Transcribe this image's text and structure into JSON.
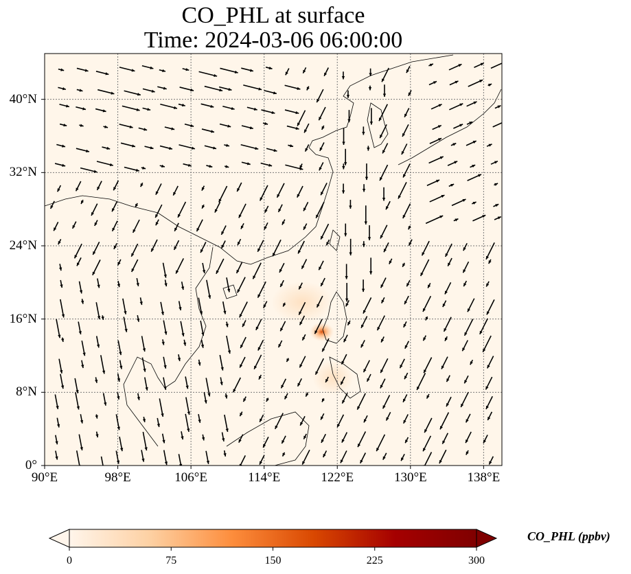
{
  "title": "CO_PHL at surface",
  "subtitle": "Time: 2024-03-06 06:00:00",
  "map": {
    "lon_range": [
      90,
      140
    ],
    "lat_range": [
      0,
      45
    ],
    "gridlines": true,
    "lat_ticks": [
      {
        "value": 40,
        "label": "40°N"
      },
      {
        "value": 32,
        "label": "32°N"
      },
      {
        "value": 24,
        "label": "24°N"
      },
      {
        "value": 16,
        "label": "16°N"
      },
      {
        "value": 8,
        "label": "8°N"
      },
      {
        "value": 0,
        "label": "0°"
      }
    ],
    "lon_ticks": [
      {
        "value": 90,
        "label": "90°E"
      },
      {
        "value": 98,
        "label": "98°E"
      },
      {
        "value": 106,
        "label": "106°E"
      },
      {
        "value": 114,
        "label": "114°E"
      },
      {
        "value": 122,
        "label": "122°E"
      },
      {
        "value": 130,
        "label": "130°E"
      },
      {
        "value": 138,
        "label": "138°E"
      }
    ],
    "background_color": "#fff6ea",
    "hotspot": {
      "lon": 120.3,
      "lat": 14.6,
      "value": 150
    }
  },
  "colorbar": {
    "label": "CO_PHL (ppbv)",
    "min": 0,
    "max": 300,
    "ticks": [
      "0",
      "75",
      "150",
      "225",
      "300"
    ],
    "colors": [
      "#fff5eb",
      "#fdd0a2",
      "#fd8d3c",
      "#d94801",
      "#a50000",
      "#7f0000"
    ]
  }
}
